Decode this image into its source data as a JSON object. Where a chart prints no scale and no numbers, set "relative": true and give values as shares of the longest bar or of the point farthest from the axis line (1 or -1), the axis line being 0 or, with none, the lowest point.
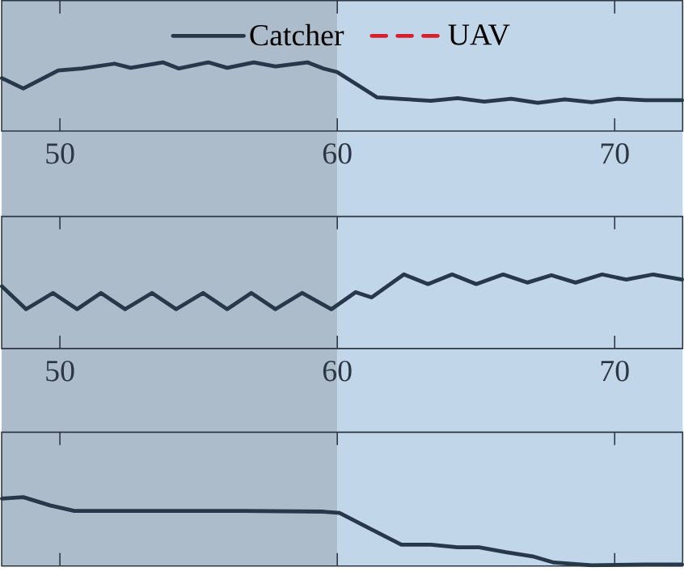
{
  "chart_data": [
    {
      "type": "line",
      "relative": true,
      "xlim": [
        47.9,
        72.45
      ],
      "xticks": [
        50,
        60,
        70
      ],
      "tick_labels": "x",
      "legend": "top",
      "marker": "none",
      "bands": [
        {
          "axis": "x",
          "from": 47.9,
          "to": 60,
          "color": "#adbccb"
        },
        {
          "axis": "x",
          "from": 60,
          "to": 72.45,
          "color": "#c2d6ea"
        }
      ],
      "series": [
        {
          "name": "Catcher",
          "color": "#26384a",
          "line_style": "solid",
          "x": [
            47.91,
            48.68,
            49.94,
            50.81,
            51.97,
            52.55,
            53.71,
            54.29,
            55.35,
            56.03,
            56.99,
            57.77,
            58.92,
            59.5,
            59.99,
            60.66,
            61.44,
            62.21,
            63.37,
            64.34,
            65.3,
            66.27,
            67.23,
            68.2,
            69.17,
            70.13,
            71.1,
            72.43
          ],
          "values": [
            0.77,
            0.62,
            0.88,
            0.91,
            0.98,
            0.92,
            1.0,
            0.91,
            1.0,
            0.92,
            1.0,
            0.94,
            1.0,
            0.91,
            0.86,
            0.69,
            0.49,
            0.47,
            0.44,
            0.48,
            0.43,
            0.47,
            0.41,
            0.46,
            0.42,
            0.47,
            0.45,
            0.45
          ]
        },
        {
          "name": "UAV",
          "color": "#d62030",
          "line_style": "dashed"
        }
      ]
    },
    {
      "type": "line",
      "relative": true,
      "xlim": [
        47.9,
        72.45
      ],
      "xticks": [
        50,
        60,
        70
      ],
      "tick_labels": "x",
      "marker": "none",
      "bands": [
        {
          "axis": "x",
          "from": 47.9,
          "to": 60,
          "color": "#adbccb"
        },
        {
          "axis": "x",
          "from": 60,
          "to": 72.45,
          "color": "#c2d6ea"
        }
      ],
      "series": [
        {
          "color": "#26384a",
          "line_style": "solid",
          "x": [
            47.91,
            48.78,
            49.75,
            50.62,
            51.48,
            52.35,
            53.32,
            54.19,
            55.16,
            56.03,
            56.9,
            57.77,
            58.73,
            59.79,
            60.66,
            61.24,
            62.4,
            63.27,
            64.14,
            65.01,
            65.98,
            66.85,
            67.72,
            68.59,
            69.55,
            70.42,
            71.39,
            72.43
          ],
          "values": [
            0.84,
            0.53,
            0.75,
            0.53,
            0.75,
            0.53,
            0.75,
            0.53,
            0.75,
            0.53,
            0.75,
            0.53,
            0.75,
            0.53,
            0.76,
            0.69,
            1.0,
            0.87,
            1.0,
            0.87,
            1.0,
            0.89,
            0.99,
            0.89,
            1.0,
            0.93,
            1.0,
            0.93
          ]
        }
      ]
    },
    {
      "type": "line",
      "relative": true,
      "xlim": [
        47.9,
        72.45
      ],
      "xticks": [
        50,
        60,
        70
      ],
      "tick_labels": false,
      "marker": "none",
      "bands": [
        {
          "axis": "x",
          "from": 47.9,
          "to": 60,
          "color": "#adbccb"
        },
        {
          "axis": "x",
          "from": 60,
          "to": 72.45,
          "color": "#c2d6ea"
        }
      ],
      "series": [
        {
          "color": "#26384a",
          "line_style": "solid",
          "x": [
            47.91,
            48.68,
            49.65,
            50.52,
            53.71,
            56.61,
            59.5,
            60.08,
            61.24,
            62.31,
            63.37,
            64.34,
            65.11,
            66.07,
            67.04,
            67.81,
            69.17,
            71.1,
            72.43
          ],
          "values": [
            0.98,
            1.0,
            0.88,
            0.8,
            0.8,
            0.8,
            0.79,
            0.77,
            0.53,
            0.31,
            0.31,
            0.27,
            0.27,
            0.2,
            0.14,
            0.05,
            0.01,
            0.02,
            0.02
          ]
        }
      ]
    }
  ]
}
